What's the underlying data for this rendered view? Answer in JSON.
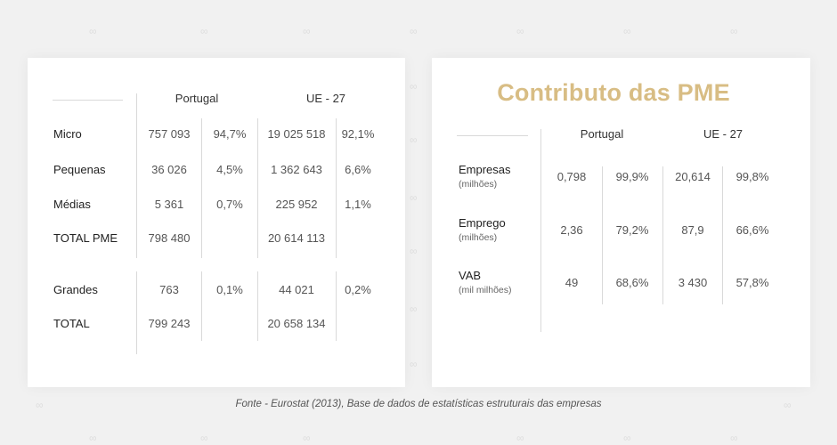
{
  "watermark_glyph": "∞",
  "left_table": {
    "headers": [
      "Portugal",
      "UE - 27"
    ],
    "rows": [
      {
        "label": "Micro",
        "pt_count": "757 093",
        "pt_pct": "94,7%",
        "eu_count": "19 025 518",
        "eu_pct": "92,1%"
      },
      {
        "label": "Pequenas",
        "pt_count": "36 026",
        "pt_pct": "4,5%",
        "eu_count": "1 362 643",
        "eu_pct": "6,6%"
      },
      {
        "label": "Médias",
        "pt_count": "5 361",
        "pt_pct": "0,7%",
        "eu_count": "225 952",
        "eu_pct": "1,1%"
      },
      {
        "label": "TOTAL PME",
        "pt_count": "798 480",
        "pt_pct": "",
        "eu_count": "20 614 113",
        "eu_pct": ""
      },
      {
        "label": "Grandes",
        "pt_count": "763",
        "pt_pct": "0,1%",
        "eu_count": "44 021",
        "eu_pct": "0,2%"
      },
      {
        "label": "TOTAL",
        "pt_count": "799 243",
        "pt_pct": "",
        "eu_count": "20 658 134",
        "eu_pct": ""
      }
    ]
  },
  "right_table": {
    "title": "Contributo das PME",
    "headers": [
      "Portugal",
      "UE - 27"
    ],
    "rows": [
      {
        "label": "Empresas",
        "sublabel": "(milhões)",
        "pt_val": "0,798",
        "pt_pct": "99,9%",
        "eu_val": "20,614",
        "eu_pct": "99,8%"
      },
      {
        "label": "Emprego",
        "sublabel": "(milhões)",
        "pt_val": "2,36",
        "pt_pct": "79,2%",
        "eu_val": "87,9",
        "eu_pct": "66,6%"
      },
      {
        "label": "VAB",
        "sublabel": "(mil milhões)",
        "pt_val": "49",
        "pt_pct": "68,6%",
        "eu_val": "3 430",
        "eu_pct": "57,8%"
      }
    ]
  },
  "footer": {
    "source_label": "Fonte",
    "source_text": " - Eurostat (2013), Base de dados de estatísticas estruturais das empresas"
  },
  "colors": {
    "title": "#d8bd84",
    "background": "#f1f1f1",
    "card": "#ffffff",
    "rule": "#d9d9d9"
  }
}
